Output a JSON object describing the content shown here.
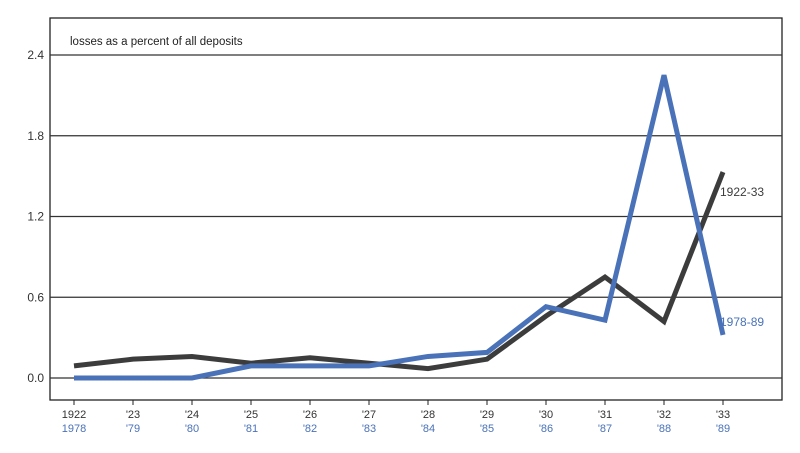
{
  "chart_data": {
    "type": "line",
    "ylabel": "losses as a percent of all deposits",
    "ylim": [
      0,
      2.4
    ],
    "y_ticks": [
      "0.0",
      "0.6",
      "1.2",
      "1.8",
      "2.4"
    ],
    "grid": true,
    "categories_top": [
      "1922",
      "'23",
      "'24",
      "'25",
      "'26",
      "'27",
      "'28",
      "'29",
      "'30",
      "'31",
      "'32",
      "'33"
    ],
    "categories_bottom": [
      "1978",
      "'79",
      "'80",
      "'81",
      "'82",
      "'83",
      "'84",
      "'85",
      "'86",
      "'87",
      "'88",
      "'89"
    ],
    "series": [
      {
        "name": "1922-33",
        "color": "#3c3c3c",
        "values": [
          0.09,
          0.14,
          0.16,
          0.11,
          0.15,
          0.11,
          0.07,
          0.14,
          0.46,
          0.75,
          0.42,
          1.53
        ]
      },
      {
        "name": "1978-89",
        "color": "#4a72b8",
        "values": [
          0.0,
          0.0,
          0.0,
          0.09,
          0.09,
          0.09,
          0.16,
          0.19,
          0.53,
          0.43,
          2.25,
          0.32
        ]
      }
    ]
  }
}
